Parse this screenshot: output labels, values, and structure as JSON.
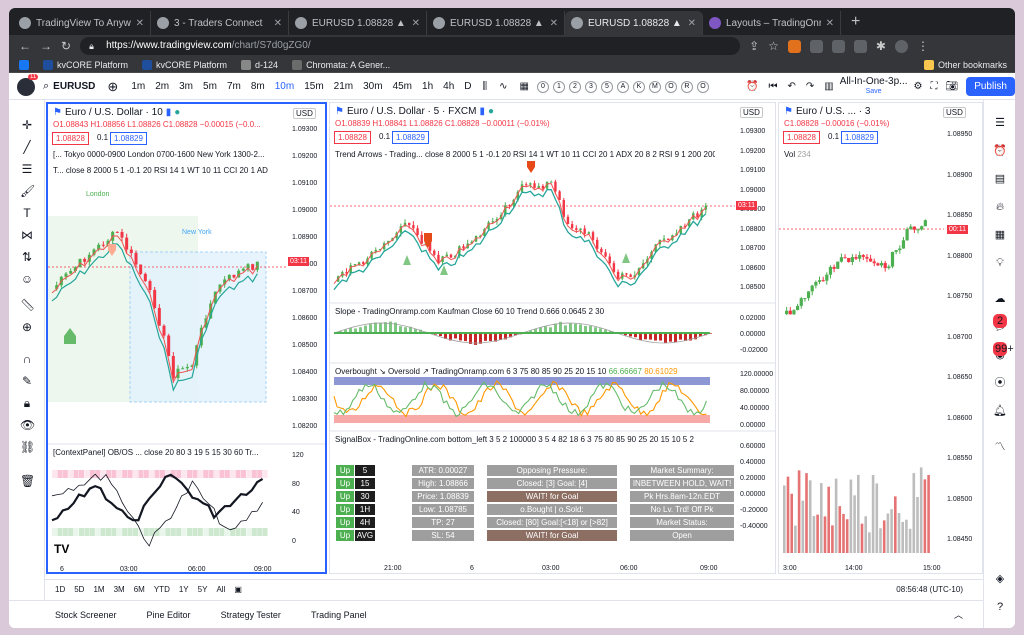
{
  "browser": {
    "tabs": [
      {
        "title": "TradingView To Anywhere - A",
        "active": false
      },
      {
        "title": "3 - Traders Connect",
        "active": false
      },
      {
        "title": "EURUSD 1.08828 ▲ +0.27% A",
        "active": false
      },
      {
        "title": "EURUSD 1.08828 ▲ +0.27% A",
        "active": false
      },
      {
        "title": "EURUSD 1.08828 ▲ +0.27% A",
        "active": true
      },
      {
        "title": "Layouts – TradingOnramp",
        "active": false
      }
    ],
    "url_host": "https://www.tradingview.com",
    "url_path": "/chart/S7d0gZG0/",
    "bookmarks": [
      "kvCORE Platform",
      "kvCORE Platform",
      "d-124",
      "Chromata: A Gener..."
    ],
    "other_bookmarks": "Other bookmarks"
  },
  "toolbar": {
    "symbol": "EURUSD",
    "notif": "11",
    "intervals": [
      "1m",
      "2m",
      "3m",
      "5m",
      "7m",
      "8m",
      "10m",
      "15m",
      "21m",
      "30m",
      "45m",
      "1h",
      "4h",
      "D"
    ],
    "selected_interval": "10m",
    "circles": [
      "0",
      "1",
      "2",
      "3",
      "5",
      "A",
      "K",
      "M",
      "O",
      "R",
      "O"
    ],
    "layout_name": "All-In-One-3p...",
    "layout_sub": "Save",
    "publish": "Publish"
  },
  "pane1": {
    "title": "Euro / U.S. Dollar · 10",
    "ohlc": "O1.08843 H1.08856 L1.08826 C1.08828 −0.00015 (−0.0...",
    "bid": "1.08828",
    "spread": "0.1",
    "ask": "1.08829",
    "ind1": "[... Tokyo 0000-0900 London 0700-1600 New York 1300-2...",
    "ind2": "T... close 8 2000 5 1 -0.1 20 RSI 14 1 WT 10 11 CCI 20 1 AD",
    "london": "London",
    "newyork": "New York",
    "currency": "USD",
    "price_axis": [
      "1.09300",
      "1.09200",
      "1.09100",
      "1.09000",
      "1.08900",
      "1.08800",
      "1.08700",
      "1.08600",
      "1.08500",
      "1.08400",
      "1.08300",
      "1.08200"
    ],
    "price_tag": "03:11",
    "sub_title": "[ContextPanel] OB/OS ...   close 20 80 3 19 5 15 30 60 Tr...",
    "sub_axis": [
      "120",
      "80",
      "40",
      "0"
    ],
    "time_axis": [
      "6",
      "03:00",
      "06:00",
      "09:00"
    ]
  },
  "pane2": {
    "title": "Euro / U.S. Dollar · 5 · FXCM",
    "ohlc": "O1.08839 H1.08841 L1.08826 C1.08828 −0.00011 (−0.01%)",
    "bid": "1.08828",
    "spread": "0.1",
    "ask": "1.08829",
    "ind1": "Trend Arrows - Trading...   close 8 2000 5 1 -0.1 20 RSI 14 1 WT 10 11 CCI 20 1 ADX 20 8 2 RSI 9 1 200 200 8...",
    "currency": "USD",
    "price_axis": [
      "1.09300",
      "1.09200",
      "1.09100",
      "1.09000",
      "1.08900",
      "1.08800",
      "1.08700",
      "1.08600",
      "1.08500"
    ],
    "price_tag": "03:11",
    "slope_title": "Slope - TradingOnramp.com Kaufman Close 60 10 Trend 0.666 0.0645 2 30",
    "slope_axis": [
      "0.02000",
      "0.00000",
      "-0.02000"
    ],
    "ob_title": "Overbought ↘ Oversold ↗ TradingOnramp.com 6 3 75 80 85 90 25 20 15 10",
    "ob_v1": "66.66667",
    "ob_v2": "80.61029",
    "ob_axis": [
      "120.00000",
      "80.00000",
      "40.00000",
      "0.00000"
    ],
    "sig_title": "SignalBox - TradingOnline.com bottom_left 3 5 2 100000 3 5 4 82 18 6 3 75 80 85 90 25 20 15 10 5 2",
    "sig_axis": [
      "0.60000",
      "0.40000",
      "0.20000",
      "0.00000",
      "-0.20000",
      "-0.40000"
    ],
    "time_axis": [
      "21:00",
      "6",
      "03:00",
      "06:00",
      "09:00"
    ]
  },
  "signalbox": {
    "tf": [
      {
        "dir": "Up",
        "tf": "5"
      },
      {
        "dir": "Up",
        "tf": "15"
      },
      {
        "dir": "Up",
        "tf": "30"
      },
      {
        "dir": "Up",
        "tf": "1H"
      },
      {
        "dir": "Up",
        "tf": "4H"
      },
      {
        "dir": "Up",
        "tf": "AVG"
      }
    ],
    "stats": [
      "ATR: 0.00027",
      "High: 1.08866",
      "Price: 1.08839",
      "Low: 1.08785",
      "TP: 27",
      "SL: 54"
    ],
    "pressure": [
      "Opposing Pressure:",
      "Closed: [3] Goal: [4]",
      "WAIT! for Goal",
      "o.Bought | o.Sold:",
      "Closed: [80] Goal:[<18] or [>82]",
      "WAIT! for Goal"
    ],
    "summary": [
      "Market Summary:",
      "INBETWEEN HOLD, WAIT!",
      "Pk Hrs.8am-12n.EDT",
      "No Lv. Trd! Off Pk",
      "Market Status:",
      "Open"
    ]
  },
  "pane3": {
    "title": "Euro / U.S. ... · 3",
    "ohlc": "C1.08828 −0.00016 (−0.01%)",
    "bid": "1.08828",
    "spread": "0.1",
    "ask": "1.08829",
    "vol_label": "Vol",
    "vol_value": "234",
    "currency": "USD",
    "price_axis": [
      "1.08950",
      "1.08900",
      "1.08850",
      "1.08800",
      "1.08750",
      "1.08700",
      "1.08650",
      "1.08600",
      "1.08550",
      "1.08500",
      "1.08450"
    ],
    "price_tag": "00:11",
    "time_axis": [
      "3:00",
      "14:00",
      "15:00"
    ]
  },
  "range_bar": {
    "ranges": [
      "1D",
      "5D",
      "1M",
      "3M",
      "6M",
      "YTD",
      "1Y",
      "5Y",
      "All"
    ],
    "clock": "08:56:48 (UTC-10)"
  },
  "bottom_tabs": [
    "Stock Screener",
    "Pine Editor",
    "Strategy Tester",
    "Trading Panel"
  ],
  "colors": {
    "up": "#4caf50",
    "down": "#f23645",
    "accent": "#2962ff"
  }
}
